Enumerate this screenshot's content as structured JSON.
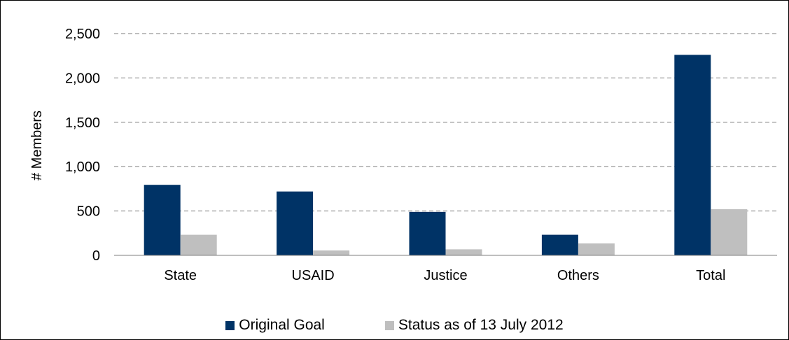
{
  "chart_data": {
    "type": "bar",
    "ylabel": "# Members",
    "categories": [
      "State",
      "USAID",
      "Justice",
      "Others",
      "Total"
    ],
    "series": [
      {
        "name": "Original Goal",
        "color": "#003366",
        "values": [
          795,
          720,
          490,
          232,
          2260
        ]
      },
      {
        "name": "Status as of 13 July 2012",
        "color": "#bfbfbf",
        "values": [
          232,
          55,
          68,
          135,
          520
        ]
      }
    ],
    "ylim": [
      0,
      2500
    ],
    "yticks": [
      0,
      500,
      1000,
      1500,
      2000,
      2500
    ],
    "ytick_labels": [
      "0",
      "500",
      "1,000",
      "1,500",
      "2,000",
      "2,500"
    ],
    "grid": true,
    "grid_style": "dashed",
    "legend_position": "bottom"
  }
}
